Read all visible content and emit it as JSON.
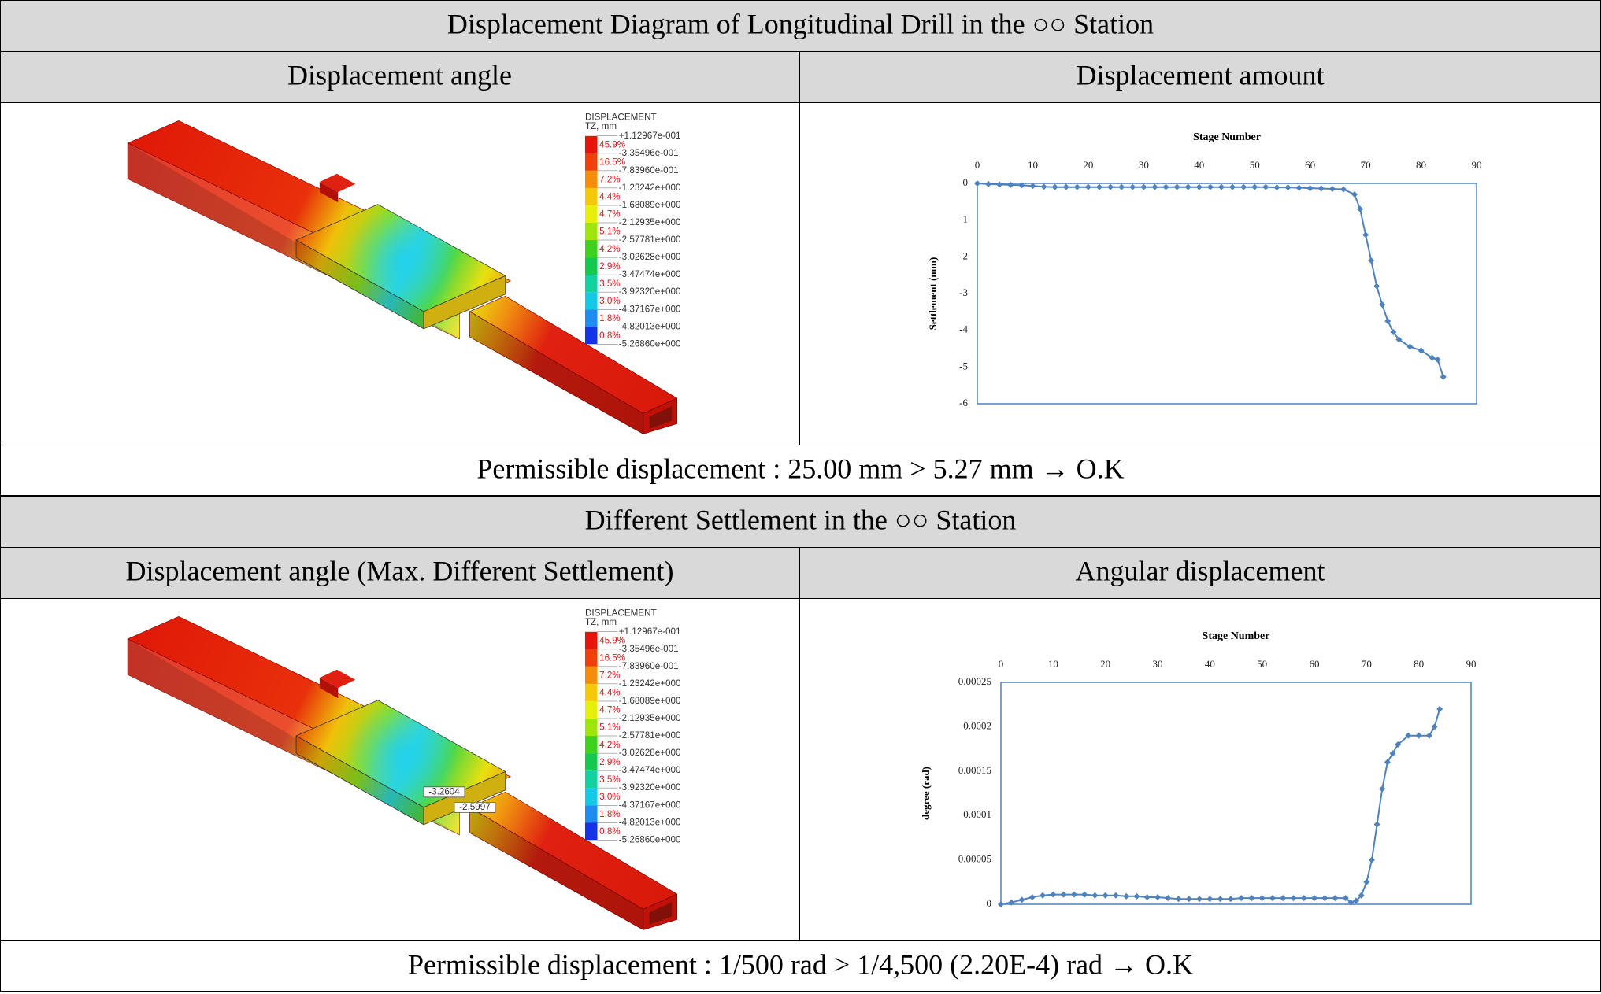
{
  "sections": [
    {
      "title": "Displacement Diagram of Longitudinal Drill in the ○○ Station",
      "left_header": "Displacement angle",
      "right_header": "Displacement amount",
      "model": {
        "legend_title": "DISPLACEMENT",
        "legend_subtitle": "TZ, mm",
        "levels": [
          "+1.12967e-001",
          "-3.35496e-001",
          "-7.83960e-001",
          "-1.23242e+000",
          "-1.68089e+000",
          "-2.12935e+000",
          "-2.57781e+000",
          "-3.02628e+000",
          "-3.47474e+000",
          "-3.92320e+000",
          "-4.37167e+000",
          "-4.82013e+000",
          "-5.26860e+000"
        ],
        "percentages": [
          "45.9%",
          "16.5%",
          "7.2%",
          "4.4%",
          "4.7%",
          "5.1%",
          "4.2%",
          "2.9%",
          "3.5%",
          "3.0%",
          "1.8%",
          "0.8%"
        ],
        "colors": [
          "#e8140a",
          "#f0400a",
          "#f58c0a",
          "#f5c80a",
          "#e6f00a",
          "#a0e60a",
          "#3cd21e",
          "#14c850",
          "#14d2a0",
          "#14c8e6",
          "#1e8cf0",
          "#1432e6"
        ]
      },
      "chart_data": {
        "type": "line",
        "title": "Stage Number",
        "y_label": "Settlement (mm)",
        "color": "#4f81bd",
        "xlim": [
          0,
          90
        ],
        "xticks": [
          0,
          10,
          20,
          30,
          40,
          50,
          60,
          70,
          80,
          90
        ],
        "ylim": [
          -6,
          0
        ],
        "yticks": [
          0,
          -1,
          -2,
          -3,
          -4,
          -5,
          -6
        ],
        "x": [
          0,
          2,
          4,
          6,
          8,
          10,
          12,
          14,
          16,
          18,
          20,
          22,
          24,
          26,
          28,
          30,
          32,
          34,
          36,
          38,
          40,
          42,
          44,
          46,
          48,
          50,
          52,
          54,
          56,
          58,
          60,
          62,
          64,
          66,
          68,
          69,
          70,
          71,
          72,
          73,
          74,
          75,
          76,
          78,
          80,
          82,
          83,
          84
        ],
        "values": [
          0,
          -0.02,
          -0.03,
          -0.04,
          -0.05,
          -0.07,
          -0.09,
          -0.1,
          -0.1,
          -0.1,
          -0.1,
          -0.1,
          -0.1,
          -0.1,
          -0.1,
          -0.1,
          -0.1,
          -0.1,
          -0.1,
          -0.1,
          -0.1,
          -0.1,
          -0.1,
          -0.1,
          -0.1,
          -0.1,
          -0.1,
          -0.11,
          -0.11,
          -0.12,
          -0.13,
          -0.14,
          -0.15,
          -0.16,
          -0.3,
          -0.7,
          -1.4,
          -2.1,
          -2.8,
          -3.3,
          -3.75,
          -4.05,
          -4.25,
          -4.45,
          -4.55,
          -4.75,
          -4.8,
          -5.27
        ]
      },
      "footer": "Permissible displacement : 25.00 mm > 5.27 mm → O.K"
    },
    {
      "title": "Different Settlement in the ○○ Station",
      "left_header": "Displacement angle (Max. Different Settlement)",
      "right_header": "Angular displacement",
      "model": {
        "legend_title": "DISPLACEMENT",
        "legend_subtitle": "TZ, mm",
        "levels": [
          "+1.12967e-001",
          "-3.35496e-001",
          "-7.83960e-001",
          "-1.23242e+000",
          "-1.68089e+000",
          "-2.12935e+000",
          "-2.57781e+000",
          "-3.02628e+000",
          "-3.47474e+000",
          "-3.92320e+000",
          "-4.37167e+000",
          "-4.82013e+000",
          "-5.26860e+000"
        ],
        "percentages": [
          "45.9%",
          "16.5%",
          "7.2%",
          "4.4%",
          "4.7%",
          "5.1%",
          "4.2%",
          "2.9%",
          "3.5%",
          "3.0%",
          "1.8%",
          "0.8%"
        ],
        "colors": [
          "#e8140a",
          "#f0400a",
          "#f58c0a",
          "#f5c80a",
          "#e6f00a",
          "#a0e60a",
          "#3cd21e",
          "#14c850",
          "#14d2a0",
          "#14c8e6",
          "#1e8cf0",
          "#1432e6"
        ],
        "annotations": [
          "-3.2604",
          "-2.5997"
        ]
      },
      "chart_data": {
        "type": "line",
        "title": "Stage Number",
        "y_label": "degree (rad)",
        "color": "#4f81bd",
        "xlim": [
          0,
          90
        ],
        "xticks": [
          0,
          10,
          20,
          30,
          40,
          50,
          60,
          70,
          80,
          90
        ],
        "ylim": [
          0,
          0.00025
        ],
        "yticks": [
          0.00025,
          0.0002,
          0.00015,
          0.0001,
          {
            "value": 5e-05,
            "label": "0.00005"
          },
          0
        ],
        "x": [
          0,
          2,
          4,
          6,
          8,
          10,
          12,
          14,
          16,
          18,
          20,
          22,
          24,
          26,
          28,
          30,
          32,
          34,
          36,
          38,
          40,
          42,
          44,
          46,
          48,
          50,
          52,
          54,
          56,
          58,
          60,
          62,
          64,
          66,
          67,
          68,
          69,
          70,
          71,
          72,
          73,
          74,
          75,
          76,
          78,
          80,
          82,
          83,
          84
        ],
        "values": [
          0,
          2e-06,
          5e-06,
          8e-06,
          1e-05,
          1.1e-05,
          1.1e-05,
          1.1e-05,
          1.1e-05,
          1e-05,
          1e-05,
          1e-05,
          9e-06,
          9e-06,
          8e-06,
          8e-06,
          7e-06,
          6e-06,
          6e-06,
          6e-06,
          6e-06,
          6e-06,
          6e-06,
          7e-06,
          7e-06,
          7e-06,
          7e-06,
          7e-06,
          7e-06,
          7e-06,
          7e-06,
          7e-06,
          7e-06,
          7e-06,
          2e-06,
          4e-06,
          1e-05,
          2.5e-05,
          5e-05,
          9e-05,
          0.00013,
          0.00016,
          0.00017,
          0.00018,
          0.00019,
          0.00019,
          0.00019,
          0.0002,
          0.00022
        ]
      },
      "footer": "Permissible displacement : 1/500 rad > 1/4,500 (2.20E-4) rad → O.K"
    }
  ]
}
